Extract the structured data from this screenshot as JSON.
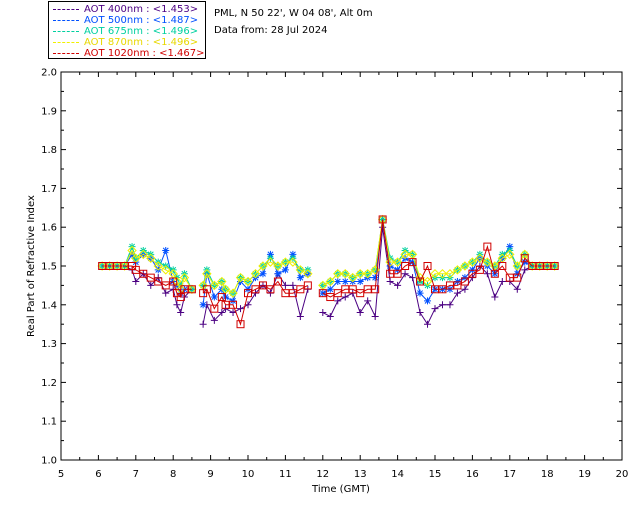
{
  "header": {
    "site": "PML, N 50 22', W 04 08', Alt 0m",
    "date": "Data from: 28 Jul 2024"
  },
  "legend": [
    {
      "label": "AOT  400nm : <1.453>",
      "color": "#4b0082"
    },
    {
      "label": "AOT  500nm : <1.487>",
      "color": "#0050ff"
    },
    {
      "label": "AOT  675nm : <1.496>",
      "color": "#00d0a0"
    },
    {
      "label": "AOT  870nm : <1.496>",
      "color": "#f0f000"
    },
    {
      "label": "AOT 1020nm : <1.467>",
      "color": "#d00000"
    }
  ],
  "chart_data": {
    "type": "scatter",
    "xlabel": "Time (GMT)",
    "ylabel": "Real Part of Refractive Index",
    "xlim": [
      5,
      20
    ],
    "ylim": [
      1.0,
      2.0
    ],
    "xticks": [
      "5",
      "6",
      "7",
      "8",
      "9",
      "10",
      "11",
      "12",
      "13",
      "14",
      "15",
      "16",
      "17",
      "18",
      "19",
      "20"
    ],
    "yticks": [
      "1.0",
      "1.1",
      "1.2",
      "1.3",
      "1.4",
      "1.5",
      "1.6",
      "1.7",
      "1.8",
      "1.9",
      "2.0"
    ],
    "series": [
      {
        "name": "AOT  400nm",
        "color": "#4b0082",
        "marker": "plus",
        "x": [
          6.1,
          6.3,
          6.5,
          6.7,
          6.9,
          7.0,
          7.2,
          7.4,
          7.6,
          7.8,
          8.0,
          8.1,
          8.2,
          8.3,
          8.5,
          8.8,
          8.9,
          9.1,
          9.3,
          9.4,
          9.6,
          9.8,
          10.0,
          10.2,
          10.4,
          10.6,
          10.8,
          11.0,
          11.2,
          11.4,
          11.6,
          12.0,
          12.2,
          12.4,
          12.6,
          12.8,
          13.0,
          13.2,
          13.4,
          13.6,
          13.8,
          14.0,
          14.2,
          14.4,
          14.6,
          14.8,
          15.0,
          15.2,
          15.4,
          15.6,
          15.8,
          16.0,
          16.2,
          16.4,
          16.6,
          16.8,
          17.0,
          17.2,
          17.4,
          17.6,
          17.8,
          18.0,
          18.2
        ],
        "y": [
          1.5,
          1.5,
          1.5,
          1.5,
          1.49,
          1.46,
          1.48,
          1.45,
          1.47,
          1.43,
          1.44,
          1.4,
          1.38,
          1.42,
          1.44,
          1.35,
          1.4,
          1.36,
          1.38,
          1.39,
          1.38,
          1.39,
          1.4,
          1.43,
          1.45,
          1.43,
          1.48,
          1.45,
          1.45,
          1.37,
          1.44,
          1.38,
          1.37,
          1.41,
          1.42,
          1.43,
          1.38,
          1.41,
          1.37,
          1.6,
          1.46,
          1.45,
          1.48,
          1.47,
          1.38,
          1.35,
          1.39,
          1.4,
          1.4,
          1.43,
          1.44,
          1.47,
          1.5,
          1.48,
          1.42,
          1.46,
          1.46,
          1.44,
          1.49,
          1.5,
          1.5,
          1.5,
          1.5
        ]
      },
      {
        "name": "AOT  500nm",
        "color": "#0050ff",
        "marker": "star",
        "x": [
          6.1,
          6.3,
          6.5,
          6.7,
          6.9,
          7.0,
          7.2,
          7.4,
          7.6,
          7.8,
          8.0,
          8.1,
          8.2,
          8.3,
          8.5,
          8.8,
          8.9,
          9.1,
          9.3,
          9.4,
          9.6,
          9.8,
          10.0,
          10.2,
          10.4,
          10.6,
          10.8,
          11.0,
          11.2,
          11.4,
          11.6,
          12.0,
          12.2,
          12.4,
          12.6,
          12.8,
          13.0,
          13.2,
          13.4,
          13.6,
          13.8,
          14.0,
          14.2,
          14.4,
          14.6,
          14.8,
          15.0,
          15.2,
          15.4,
          15.6,
          15.8,
          16.0,
          16.2,
          16.4,
          16.6,
          16.8,
          17.0,
          17.2,
          17.4,
          17.6,
          17.8,
          18.0,
          18.2
        ],
        "y": [
          1.5,
          1.5,
          1.5,
          1.5,
          1.53,
          1.51,
          1.53,
          1.52,
          1.49,
          1.54,
          1.46,
          1.45,
          1.43,
          1.44,
          1.44,
          1.4,
          1.48,
          1.42,
          1.44,
          1.42,
          1.41,
          1.46,
          1.44,
          1.47,
          1.48,
          1.53,
          1.48,
          1.49,
          1.53,
          1.47,
          1.48,
          1.43,
          1.44,
          1.46,
          1.46,
          1.46,
          1.46,
          1.47,
          1.47,
          1.62,
          1.5,
          1.49,
          1.52,
          1.51,
          1.43,
          1.41,
          1.44,
          1.44,
          1.44,
          1.46,
          1.47,
          1.49,
          1.52,
          1.5,
          1.48,
          1.52,
          1.55,
          1.48,
          1.51,
          1.5,
          1.5,
          1.5,
          1.5
        ]
      },
      {
        "name": "AOT  675nm",
        "color": "#00d0a0",
        "marker": "star",
        "x": [
          6.1,
          6.3,
          6.5,
          6.7,
          6.9,
          7.0,
          7.2,
          7.4,
          7.6,
          7.8,
          8.0,
          8.1,
          8.2,
          8.3,
          8.5,
          8.8,
          8.9,
          9.1,
          9.3,
          9.4,
          9.6,
          9.8,
          10.0,
          10.2,
          10.4,
          10.6,
          10.8,
          11.0,
          11.2,
          11.4,
          11.6,
          12.0,
          12.2,
          12.4,
          12.6,
          12.8,
          13.0,
          13.2,
          13.4,
          13.6,
          13.8,
          14.0,
          14.2,
          14.4,
          14.6,
          14.8,
          15.0,
          15.2,
          15.4,
          15.6,
          15.8,
          16.0,
          16.2,
          16.4,
          16.6,
          16.8,
          17.0,
          17.2,
          17.4,
          17.6,
          17.8,
          18.0,
          18.2
        ],
        "y": [
          1.5,
          1.5,
          1.5,
          1.5,
          1.55,
          1.52,
          1.54,
          1.53,
          1.51,
          1.5,
          1.49,
          1.47,
          1.45,
          1.48,
          1.44,
          1.45,
          1.49,
          1.45,
          1.46,
          1.44,
          1.43,
          1.47,
          1.46,
          1.48,
          1.5,
          1.52,
          1.5,
          1.51,
          1.52,
          1.49,
          1.49,
          1.45,
          1.46,
          1.48,
          1.48,
          1.47,
          1.48,
          1.48,
          1.49,
          1.62,
          1.52,
          1.51,
          1.54,
          1.53,
          1.46,
          1.45,
          1.47,
          1.47,
          1.47,
          1.49,
          1.5,
          1.51,
          1.53,
          1.51,
          1.5,
          1.53,
          1.54,
          1.5,
          1.53,
          1.5,
          1.5,
          1.5,
          1.5
        ]
      },
      {
        "name": "AOT  870nm",
        "color": "#f0f000",
        "marker": "diamond",
        "x": [
          6.1,
          6.3,
          6.5,
          6.7,
          6.9,
          7.0,
          7.2,
          7.4,
          7.6,
          7.8,
          8.0,
          8.1,
          8.2,
          8.3,
          8.5,
          8.8,
          8.9,
          9.1,
          9.3,
          9.4,
          9.6,
          9.8,
          10.0,
          10.2,
          10.4,
          10.6,
          10.8,
          11.0,
          11.2,
          11.4,
          11.6,
          12.0,
          12.2,
          12.4,
          12.6,
          12.8,
          13.0,
          13.2,
          13.4,
          13.6,
          13.8,
          14.0,
          14.2,
          14.4,
          14.6,
          14.8,
          15.0,
          15.2,
          15.4,
          15.6,
          15.8,
          16.0,
          16.2,
          16.4,
          16.6,
          16.8,
          17.0,
          17.2,
          17.4,
          17.6,
          17.8,
          18.0,
          18.2
        ],
        "y": [
          1.5,
          1.5,
          1.5,
          1.5,
          1.54,
          1.52,
          1.53,
          1.52,
          1.5,
          1.49,
          1.48,
          1.46,
          1.44,
          1.47,
          1.44,
          1.45,
          1.48,
          1.45,
          1.46,
          1.44,
          1.43,
          1.47,
          1.46,
          1.48,
          1.5,
          1.51,
          1.5,
          1.51,
          1.51,
          1.49,
          1.48,
          1.45,
          1.46,
          1.48,
          1.48,
          1.47,
          1.48,
          1.48,
          1.49,
          1.62,
          1.51,
          1.51,
          1.53,
          1.53,
          1.47,
          1.46,
          1.48,
          1.48,
          1.48,
          1.49,
          1.5,
          1.51,
          1.52,
          1.51,
          1.5,
          1.52,
          1.53,
          1.5,
          1.53,
          1.5,
          1.5,
          1.5,
          1.5
        ]
      },
      {
        "name": "AOT 1020nm",
        "color": "#d00000",
        "marker": "square",
        "x": [
          6.1,
          6.3,
          6.5,
          6.7,
          6.9,
          7.0,
          7.2,
          7.4,
          7.6,
          7.8,
          8.0,
          8.1,
          8.2,
          8.3,
          8.5,
          8.8,
          8.9,
          9.1,
          9.3,
          9.4,
          9.6,
          9.8,
          10.0,
          10.2,
          10.4,
          10.6,
          10.8,
          11.0,
          11.2,
          11.4,
          11.6,
          12.0,
          12.2,
          12.4,
          12.6,
          12.8,
          13.0,
          13.2,
          13.4,
          13.6,
          13.8,
          14.0,
          14.2,
          14.4,
          14.6,
          14.8,
          15.0,
          15.2,
          15.4,
          15.6,
          15.8,
          16.0,
          16.2,
          16.4,
          16.6,
          16.8,
          17.0,
          17.2,
          17.4,
          17.6,
          17.8,
          18.0,
          18.2
        ],
        "y": [
          1.5,
          1.5,
          1.5,
          1.5,
          1.5,
          1.49,
          1.48,
          1.47,
          1.46,
          1.45,
          1.46,
          1.43,
          1.42,
          1.44,
          1.44,
          1.43,
          1.44,
          1.39,
          1.42,
          1.4,
          1.4,
          1.35,
          1.43,
          1.44,
          1.45,
          1.44,
          1.46,
          1.43,
          1.43,
          1.44,
          1.45,
          1.43,
          1.42,
          1.43,
          1.44,
          1.44,
          1.43,
          1.44,
          1.44,
          1.62,
          1.48,
          1.48,
          1.5,
          1.51,
          1.46,
          1.5,
          1.44,
          1.44,
          1.45,
          1.45,
          1.46,
          1.48,
          1.49,
          1.55,
          1.48,
          1.5,
          1.47,
          1.47,
          1.52,
          1.5,
          1.5,
          1.5,
          1.5
        ]
      }
    ]
  }
}
